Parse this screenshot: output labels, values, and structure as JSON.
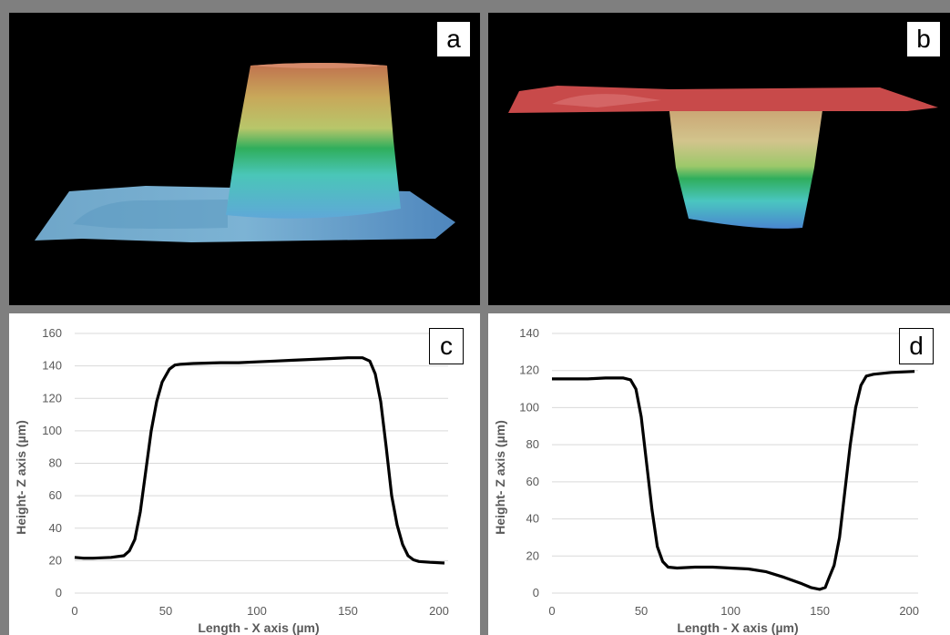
{
  "panels": {
    "a": {
      "label": "a"
    },
    "b": {
      "label": "b"
    },
    "c": {
      "label": "c"
    },
    "d": {
      "label": "d"
    }
  },
  "colors": {
    "frame": "#7f7f7f",
    "line": "#000000",
    "grid": "#d9d9d9",
    "tick_text": "#595959",
    "surface_red": "#c84a4a",
    "surface_green": "#2fae5c",
    "surface_blue": "#3c8fd0"
  },
  "chart_data": [
    {
      "type": "line",
      "panel": "c",
      "xlabel": "Length - X axis (µm)",
      "ylabel": "Height- Z axis (µm)",
      "xlim": [
        0,
        205
      ],
      "ylim": [
        0,
        160
      ],
      "xticks": [
        0,
        50,
        100,
        150,
        200
      ],
      "yticks": [
        0,
        20,
        40,
        60,
        80,
        100,
        120,
        140,
        160
      ],
      "grid": true,
      "series": [
        {
          "x": [
            0,
            5,
            10,
            20,
            27,
            30,
            33,
            36,
            39,
            42,
            45,
            48,
            52,
            55,
            58,
            65,
            80,
            90,
            100,
            110,
            120,
            130,
            140,
            150,
            158,
            162,
            165,
            168,
            171,
            174,
            177,
            180,
            183,
            186,
            189,
            195,
            203
          ],
          "y": [
            22,
            21.5,
            21.5,
            22,
            23,
            26,
            33,
            50,
            75,
            100,
            118,
            130,
            138,
            140.5,
            141,
            141.5,
            142,
            142,
            142.5,
            143,
            143.5,
            144,
            144.5,
            145,
            145,
            143,
            135,
            118,
            90,
            60,
            42,
            30,
            23,
            20.5,
            19.5,
            19,
            18.5
          ]
        }
      ]
    },
    {
      "type": "line",
      "panel": "d",
      "xlabel": "Length - X axis (µm)",
      "ylabel": "Height- Z axis (µm)",
      "xlim": [
        0,
        205
      ],
      "ylim": [
        0,
        140
      ],
      "xticks": [
        0,
        50,
        100,
        150,
        200
      ],
      "yticks": [
        0,
        20,
        40,
        60,
        80,
        100,
        120,
        140
      ],
      "grid": true,
      "series": [
        {
          "x": [
            0,
            10,
            20,
            30,
            40,
            44,
            47,
            50,
            53,
            56,
            59,
            62,
            65,
            70,
            80,
            90,
            100,
            110,
            120,
            130,
            140,
            145,
            150,
            153,
            155,
            158,
            161,
            164,
            167,
            170,
            173,
            176,
            180,
            190,
            203
          ],
          "y": [
            115.5,
            115.5,
            115.5,
            116,
            116,
            115,
            110,
            95,
            70,
            45,
            25,
            17,
            14,
            13.5,
            14,
            14,
            13.5,
            13,
            11.5,
            8.5,
            5,
            3,
            2,
            3,
            8,
            15,
            30,
            55,
            80,
            100,
            112,
            117,
            118,
            119,
            119.5
          ]
        }
      ]
    }
  ]
}
